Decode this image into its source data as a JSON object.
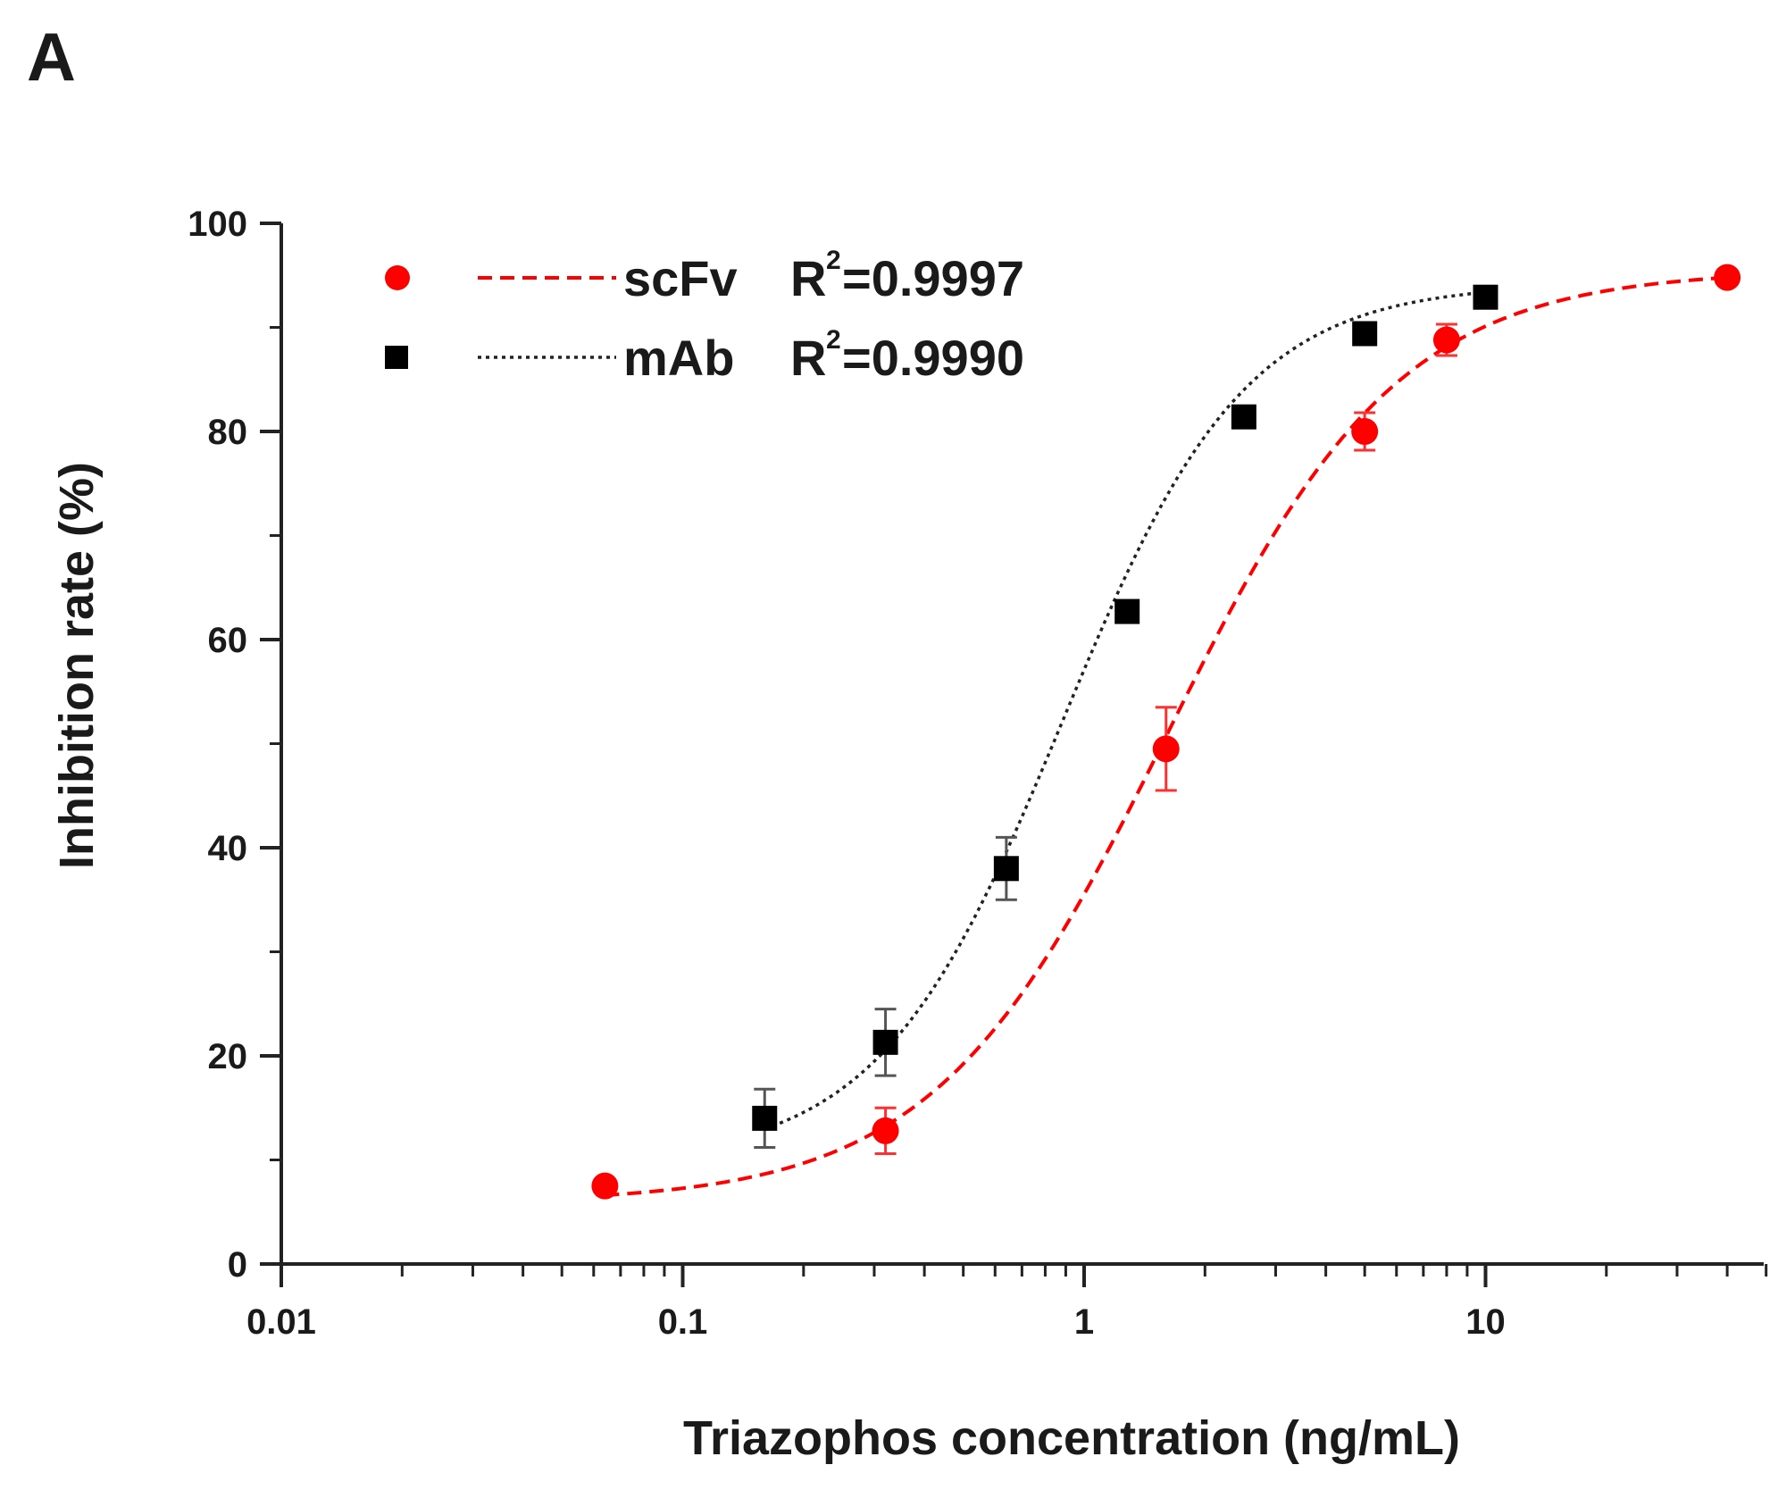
{
  "panel_label": "A",
  "chart_data": {
    "type": "scatter",
    "title": "",
    "xlabel": "Triazophos concentration (ng/mL)",
    "ylabel": "Inhibition rate (%)",
    "xscale": "log",
    "xlim": [
      0.01,
      70
    ],
    "ylim": [
      0,
      100
    ],
    "x_ticks": [
      0.01,
      0.1,
      1,
      10
    ],
    "x_tick_labels": [
      "0.01",
      "0.1",
      "1",
      "10"
    ],
    "y_ticks": [
      0,
      20,
      40,
      60,
      80,
      100
    ],
    "y_tick_labels": [
      "0",
      "20",
      "40",
      "60",
      "80",
      "100"
    ],
    "legend_position": "top-left",
    "series": [
      {
        "name": "scFv",
        "r2_label": "R",
        "r2_sup": "2",
        "r2_value": "=0.9997",
        "color": "#ff0000",
        "marker": "circle",
        "line_style": "dashed",
        "x": [
          0.064,
          0.32,
          1.6,
          5,
          8,
          40
        ],
        "y": [
          7.5,
          12.8,
          49.5,
          80,
          88.8,
          94.8
        ],
        "err": [
          0.6,
          2.2,
          4.0,
          1.8,
          1.5,
          0.5
        ],
        "fit": {
          "bottom": 5.9,
          "top": 95.5,
          "ec50": 1.6,
          "hill": 1.5
        }
      },
      {
        "name": "mAb",
        "r2_label": "R",
        "r2_sup": "2",
        "r2_value": "=0.9990",
        "color": "#000000",
        "marker": "square",
        "line_style": "dotted",
        "x": [
          0.16,
          0.32,
          0.64,
          1.28,
          2.5,
          5,
          10
        ],
        "y": [
          14,
          21.3,
          38,
          62.7,
          81.4,
          89.4,
          92.9
        ],
        "err": [
          2.8,
          3.2,
          3.0,
          0.8,
          0.8,
          0.6,
          0.5
        ],
        "fit": {
          "bottom": 9.8,
          "top": 94.2,
          "ec50": 0.88,
          "hill": 1.9
        }
      }
    ]
  }
}
